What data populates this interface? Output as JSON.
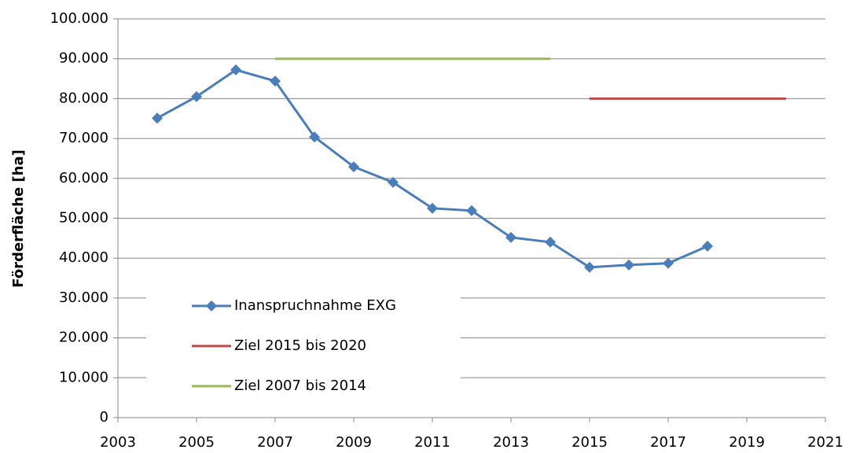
{
  "chart_data": {
    "type": "line",
    "y_label": "Förderfläche [ha]",
    "xlim": [
      2003,
      2021
    ],
    "xticks": [
      2003,
      2005,
      2007,
      2009,
      2011,
      2013,
      2015,
      2017,
      2019,
      2021
    ],
    "ylim": [
      0,
      100000
    ],
    "yticks": [
      0,
      {
        "value": 10000,
        "label": "10.000"
      },
      {
        "value": 20000,
        "label": "20.000"
      },
      {
        "value": 30000,
        "label": "30.000"
      },
      {
        "value": 40000,
        "label": "40.000"
      },
      {
        "value": 50000,
        "label": "50.000"
      },
      {
        "value": 60000,
        "label": "60.000"
      },
      {
        "value": 70000,
        "label": "70.000"
      },
      {
        "value": 80000,
        "label": "80.000"
      },
      {
        "value": 90000,
        "label": "90.000"
      },
      {
        "value": 100000,
        "label": "100.000"
      }
    ],
    "grid": true,
    "legend": "lower left",
    "series": [
      {
        "name": "Inanspruchnahme EXG",
        "color": "#4a7ebb",
        "marker": "diamond",
        "x": [
          2004,
          2005,
          2006,
          2007,
          2008,
          2009,
          2010,
          2011,
          2012,
          2013,
          2014,
          2015,
          2016,
          2017,
          2018
        ],
        "values": [
          75100,
          80500,
          87200,
          84400,
          70400,
          62900,
          59000,
          52500,
          51900,
          45200,
          44000,
          37700,
          38300,
          38700,
          43000
        ]
      },
      {
        "name": "Ziel 2015 bis 2020",
        "color": "#be4b48",
        "x": [
          2015,
          2020
        ],
        "values": [
          80000,
          80000
        ]
      },
      {
        "name": "Ziel 2007 bis 2014",
        "color": "#98b954",
        "x": [
          2007,
          2014
        ],
        "values": [
          90000,
          90000
        ]
      }
    ]
  }
}
